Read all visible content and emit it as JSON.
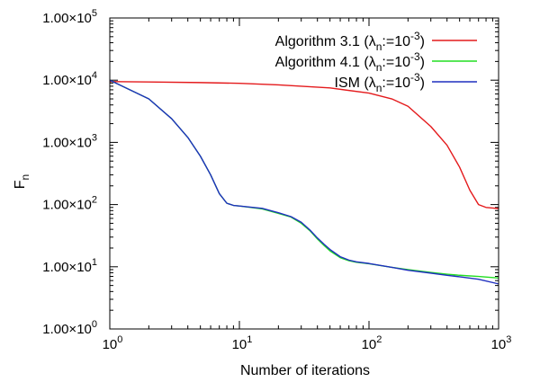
{
  "chart_data": {
    "type": "line",
    "xscale": "log",
    "yscale": "log",
    "xlim": [
      1,
      1000
    ],
    "ylim": [
      1,
      100000
    ],
    "xlabel": "Number of iterations",
    "ylabel": {
      "base": "F",
      "sub": "n"
    },
    "x_ticks": [
      {
        "value": 1,
        "base": "10",
        "exp": "0"
      },
      {
        "value": 10,
        "base": "10",
        "exp": "1"
      },
      {
        "value": 100,
        "base": "10",
        "exp": "2"
      },
      {
        "value": 1000,
        "base": "10",
        "exp": "3"
      }
    ],
    "y_ticks": [
      {
        "value": 1,
        "mant": "1.00×10",
        "exp": "0"
      },
      {
        "value": 10,
        "mant": "1.00×10",
        "exp": "1"
      },
      {
        "value": 100,
        "mant": "1.00×10",
        "exp": "2"
      },
      {
        "value": 1000,
        "mant": "1.00×10",
        "exp": "3"
      },
      {
        "value": 10000,
        "mant": "1.00×10",
        "exp": "4"
      },
      {
        "value": 100000,
        "mant": "1.00×10",
        "exp": "5"
      }
    ],
    "legend_position": "top-right",
    "series": [
      {
        "name": "Algorithm 3.1",
        "label": {
          "prefix": "Algorithm 3.1 (",
          "lambda": "λ",
          "sub": "n",
          "assign": ":=10",
          "exp": "-3",
          "suffix": ")"
        },
        "color": "#e41a1c",
        "x": [
          1,
          2,
          5,
          10,
          20,
          50,
          100,
          150,
          200,
          300,
          400,
          500,
          600,
          700,
          800,
          900,
          1000
        ],
        "y": [
          9500,
          9350,
          9150,
          8900,
          8400,
          7500,
          6200,
          5000,
          3800,
          1800,
          900,
          400,
          170,
          100,
          90,
          88,
          86
        ]
      },
      {
        "name": "Algorithm 4.1",
        "label": {
          "prefix": "Algorithm 4.1 (",
          "lambda": "λ",
          "sub": "n",
          "assign": ":=10",
          "exp": "-3",
          "suffix": ")"
        },
        "color": "#22dd22",
        "x": [
          1,
          2,
          3,
          4,
          5,
          6,
          7,
          8,
          9,
          10,
          15,
          20,
          25,
          30,
          35,
          40,
          45,
          50,
          60,
          70,
          80,
          100,
          150,
          200,
          300,
          400,
          500,
          700,
          1000
        ],
        "y": [
          10000,
          5000,
          2400,
          1200,
          600,
          300,
          150,
          105,
          97,
          95,
          85,
          72,
          63,
          50,
          38,
          28,
          22,
          18,
          14,
          12.5,
          11.8,
          11.2,
          9.8,
          9.0,
          8.1,
          7.6,
          7.3,
          7.0,
          6.6
        ]
      },
      {
        "name": "ISM",
        "label": {
          "prefix": "ISM (",
          "lambda": "λ",
          "sub": "n",
          "assign": ":=10",
          "exp": "-3",
          "suffix": ")"
        },
        "color": "#1f2fbf",
        "x": [
          1,
          2,
          3,
          4,
          5,
          6,
          7,
          8,
          9,
          10,
          15,
          20,
          25,
          30,
          35,
          40,
          45,
          50,
          60,
          70,
          80,
          100,
          150,
          200,
          300,
          400,
          500,
          700,
          1000
        ],
        "y": [
          10000,
          5000,
          2400,
          1200,
          600,
          300,
          150,
          105,
          97,
          95,
          87,
          74,
          64,
          52,
          39,
          29,
          23,
          19,
          14.5,
          12.8,
          12.0,
          11.3,
          9.8,
          8.8,
          7.9,
          7.3,
          6.9,
          6.3,
          5.3
        ]
      }
    ]
  }
}
